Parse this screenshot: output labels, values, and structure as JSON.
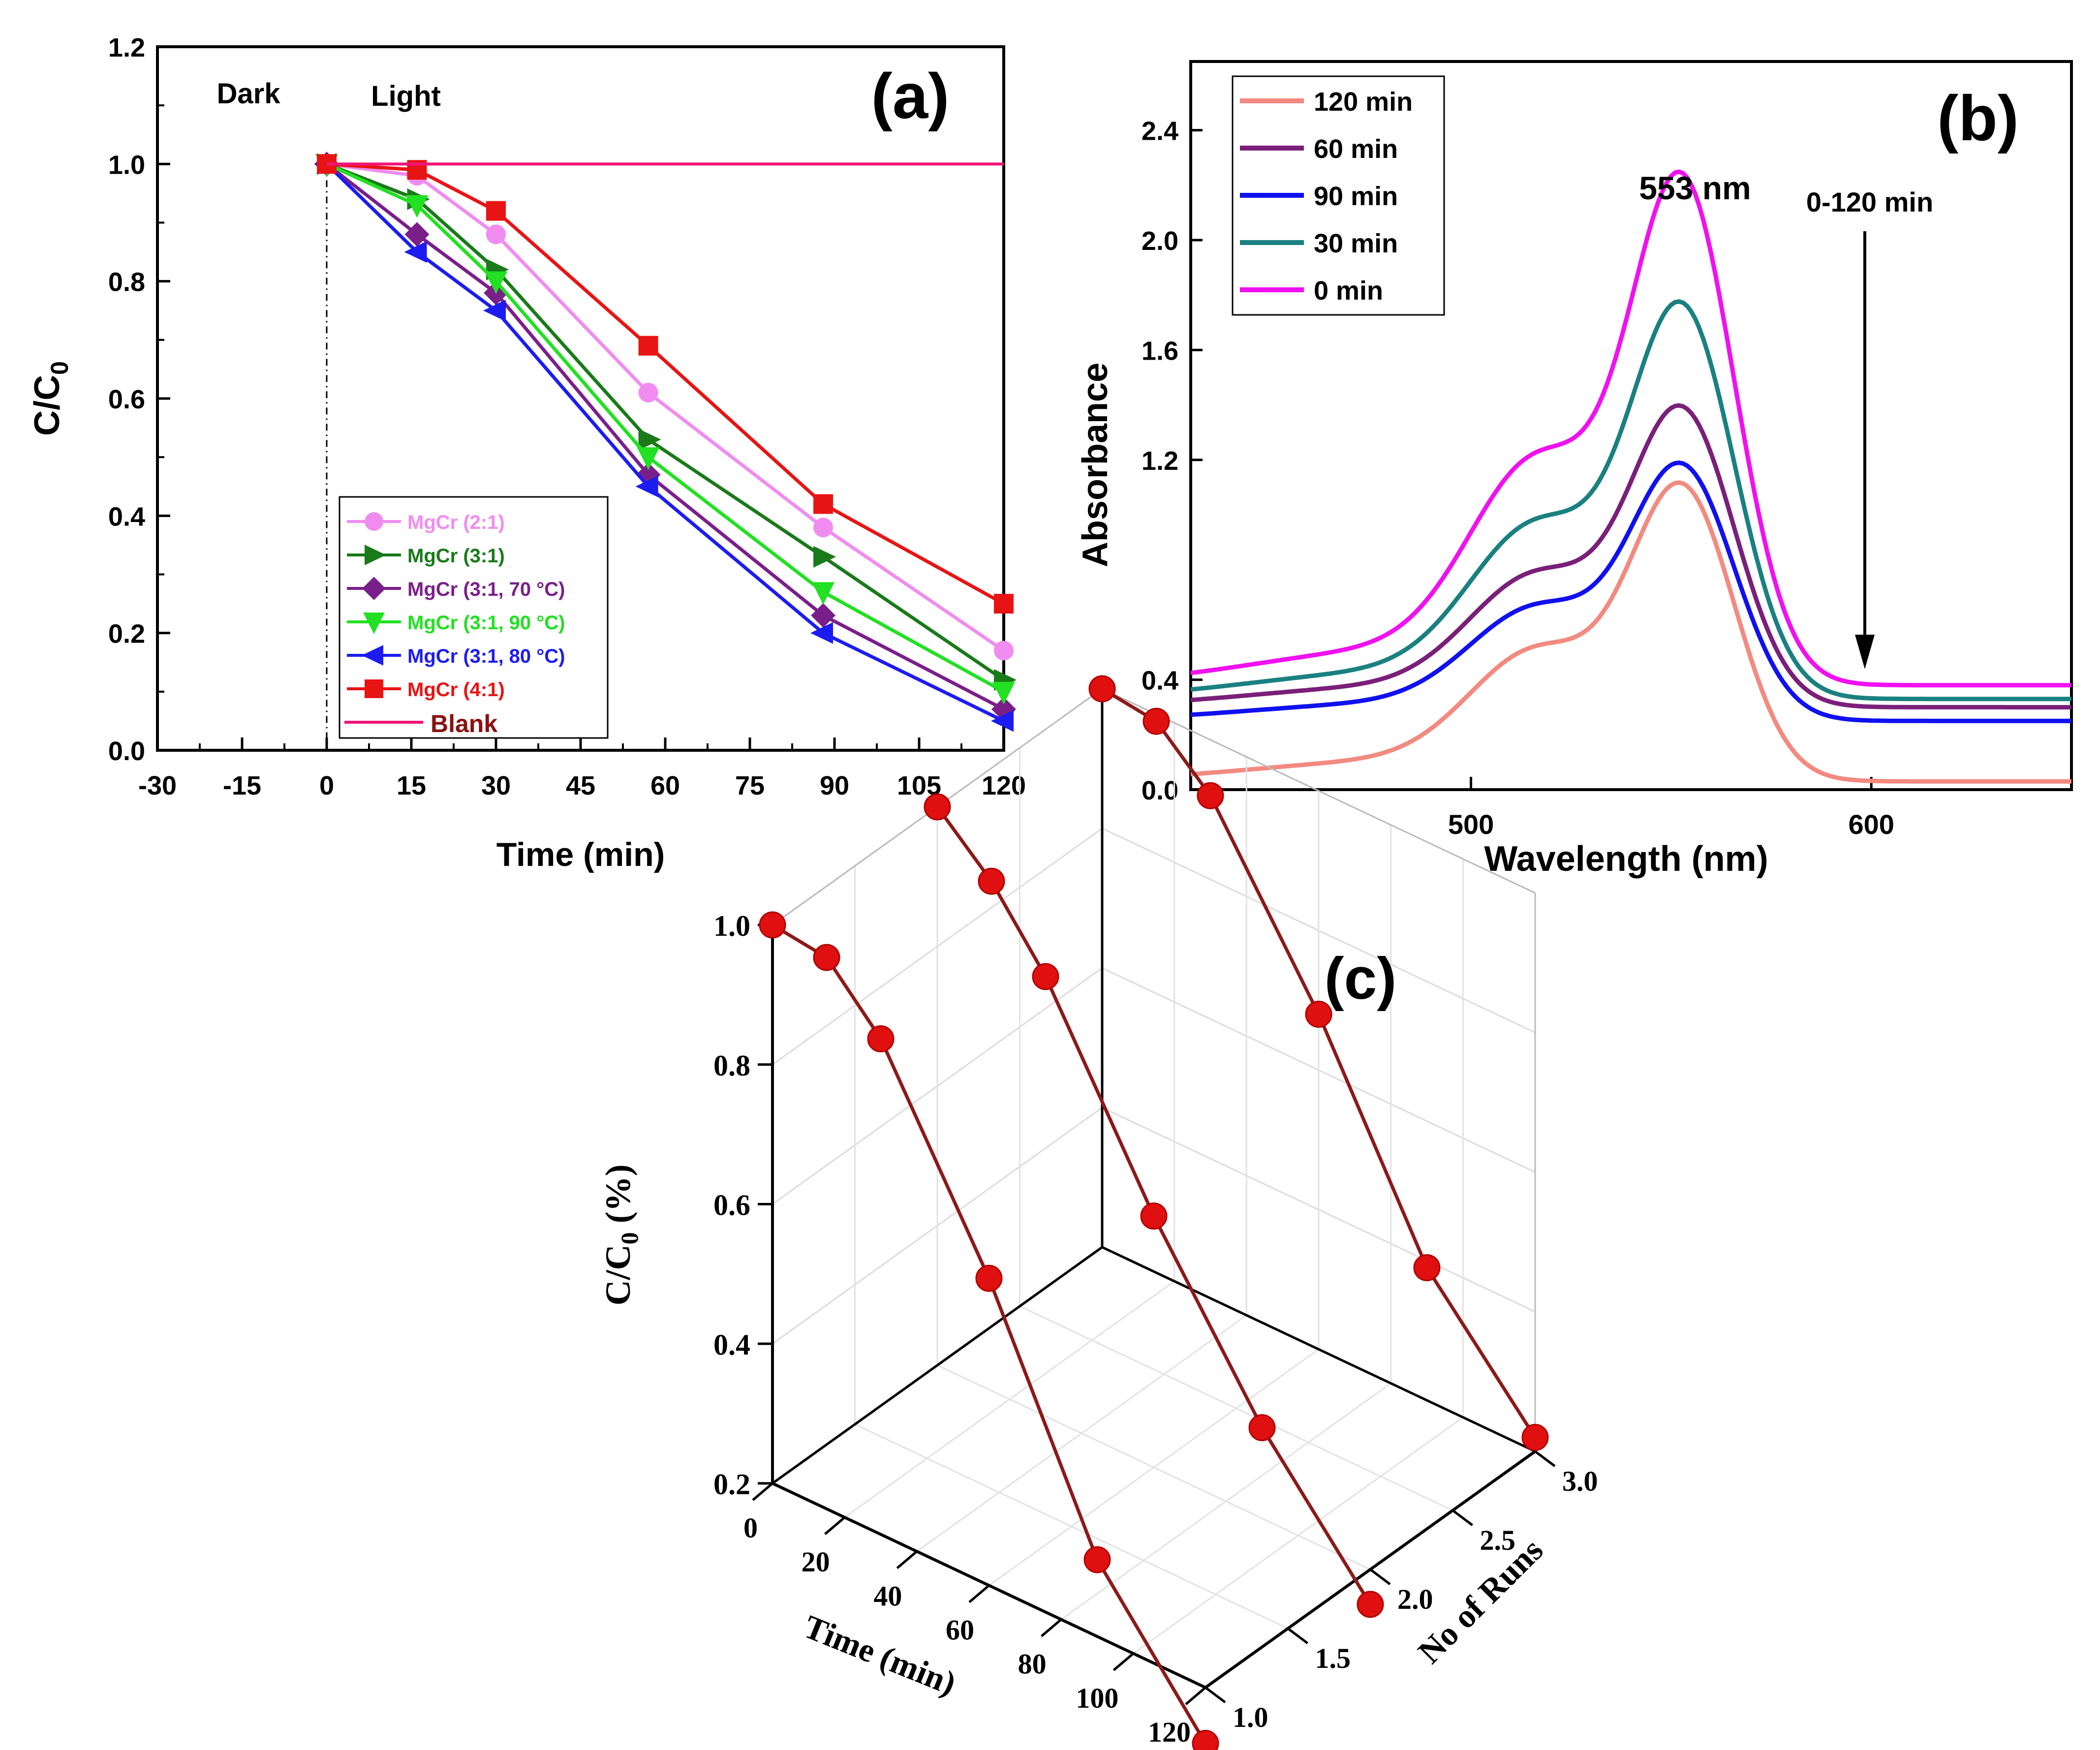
{
  "chart_data": [
    {
      "panel": "(a)",
      "type": "line",
      "xlabel": "Time (min)",
      "ylabel": "C/C",
      "ylabel_sub": "0",
      "xlim": [
        -30,
        120
      ],
      "ylim": [
        0.0,
        1.2
      ],
      "xticks": [
        "-30",
        "-15",
        "0",
        "15",
        "30",
        "45",
        "60",
        "75",
        "90",
        "105",
        "120"
      ],
      "yticks": [
        "0.0",
        "0.2",
        "0.4",
        "0.6",
        "0.8",
        "1.0",
        "1.2"
      ],
      "annotations": {
        "dark": "Dark",
        "light": "Light"
      },
      "x": [
        0,
        16,
        30,
        57,
        88,
        120
      ],
      "series": [
        {
          "name": "MgCr (2:1)",
          "color": "#f08cf0",
          "marker": "circle",
          "values": [
            1.0,
            0.98,
            0.88,
            0.61,
            0.38,
            0.17
          ]
        },
        {
          "name": "MgCr (3:1)",
          "color": "#1a7a1a",
          "marker": "tri-right",
          "values": [
            1.0,
            0.94,
            0.82,
            0.53,
            0.33,
            0.12
          ]
        },
        {
          "name": "MgCr (3:1, 70 °C)",
          "color": "#7a1f8a",
          "marker": "diamond",
          "values": [
            1.0,
            0.88,
            0.78,
            0.47,
            0.23,
            0.07
          ]
        },
        {
          "name": "MgCr (3:1, 90 °C)",
          "color": "#22e022",
          "marker": "tri-down",
          "values": [
            1.0,
            0.93,
            0.8,
            0.5,
            0.27,
            0.1
          ]
        },
        {
          "name": "MgCr (3:1, 80 °C)",
          "color": "#1c1cf0",
          "marker": "tri-left",
          "values": [
            1.0,
            0.85,
            0.75,
            0.45,
            0.2,
            0.05
          ]
        },
        {
          "name": "MgCr (4:1)",
          "color": "#e81414",
          "marker": "square",
          "values": [
            1.0,
            0.99,
            0.92,
            0.69,
            0.42,
            0.25
          ]
        },
        {
          "name": "Blank",
          "color": "#f01478",
          "marker": "none",
          "values": [
            1.0,
            1.0,
            1.0,
            1.0,
            1.0,
            1.0
          ]
        }
      ]
    },
    {
      "panel": "(b)",
      "type": "line",
      "xlabel": "Wavelength (nm)",
      "ylabel": "Absorbance",
      "xlim": [
        430,
        650
      ],
      "ylim": [
        0.0,
        2.65
      ],
      "xticks": [
        "500",
        "600"
      ],
      "yticks": [
        "0.0",
        "0.4",
        "1.2",
        "1.6",
        "2.0",
        "2.4"
      ],
      "peak_label": "553 nm",
      "arrow_label": "0-120 min",
      "series": [
        {
          "name": "120 min",
          "color": "#f28a80",
          "peak": 1.06,
          "baseline": 0.03
        },
        {
          "name": "60 min",
          "color": "#7a1f7a",
          "peak": 1.34,
          "baseline": 0.3
        },
        {
          "name": "90 min",
          "color": "#1010f0",
          "peak": 1.14,
          "baseline": 0.25
        },
        {
          "name": "30 min",
          "color": "#1a8080",
          "peak": 1.7,
          "baseline": 0.33
        },
        {
          "name": "0 min",
          "color": "#f010f0",
          "peak": 2.15,
          "baseline": 0.38
        }
      ]
    },
    {
      "panel": "(c)",
      "type": "scatter-3d",
      "xlabel": "Time (min)",
      "ylabel": "No of Runs",
      "zlabel": "C/C",
      "zlabel_sub": "0",
      "zlabel_suffix": " (%)",
      "time_ticks": [
        "0",
        "20",
        "40",
        "60",
        "80",
        "100",
        "120"
      ],
      "run_ticks": [
        "1.0",
        "1.5",
        "2.0",
        "2.5",
        "3.0"
      ],
      "z_ticks": [
        "0.2",
        "0.4",
        "0.6",
        "0.8",
        "1.0"
      ],
      "time": [
        0,
        15,
        30,
        60,
        90,
        120
      ],
      "series": [
        {
          "name": "Run 1",
          "run": 1,
          "color": "#e01010",
          "line_color": "#8b1a1a",
          "values": [
            1.0,
            0.99,
            0.91,
            0.64,
            0.31,
            0.12
          ]
        },
        {
          "name": "Run 2",
          "run": 2,
          "color": "#e01010",
          "line_color": "#8b1a1a",
          "values": [
            1.0,
            0.93,
            0.83,
            0.56,
            0.33,
            0.15
          ]
        },
        {
          "name": "Run 3",
          "run": 3,
          "color": "#e01010",
          "line_color": "#8b1a1a",
          "values": [
            1.0,
            0.99,
            0.92,
            0.68,
            0.39,
            0.22
          ]
        }
      ]
    }
  ],
  "labels": {
    "a": "(a)",
    "b": "(b)",
    "c": "(c)"
  }
}
